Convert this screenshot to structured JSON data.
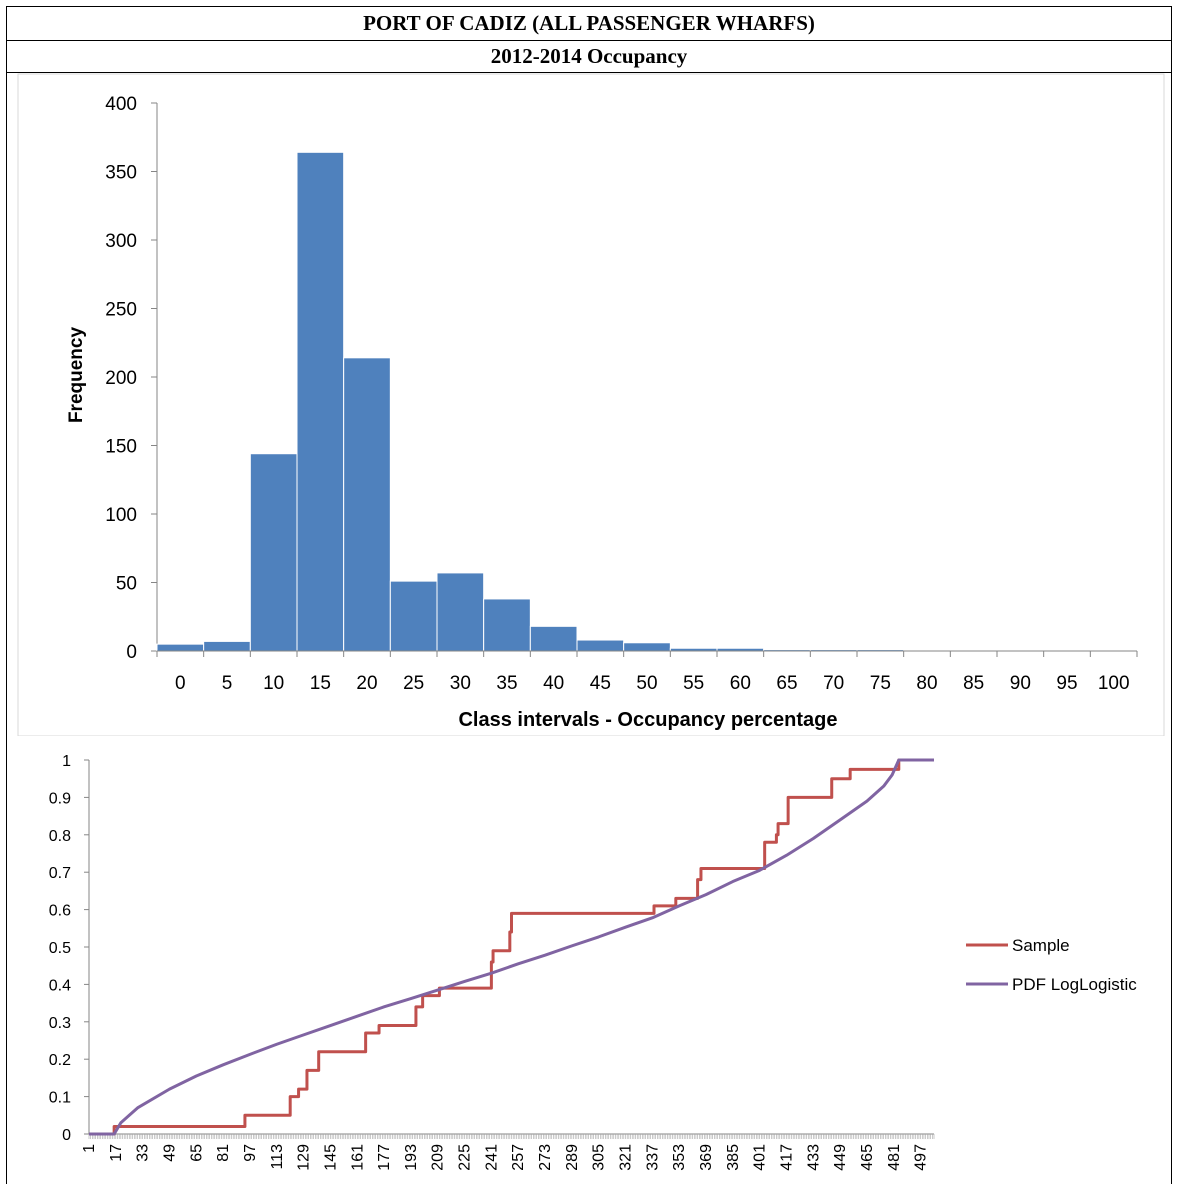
{
  "header": {
    "title": "PORT OF CADIZ (ALL PASSENGER WHARFS)",
    "subtitle": "2012-2014 Occupancy"
  },
  "chart_data": [
    {
      "type": "bar",
      "categories": [
        "0",
        "5",
        "10",
        "15",
        "20",
        "25",
        "30",
        "35",
        "40",
        "45",
        "50",
        "55",
        "60",
        "65",
        "70",
        "75",
        "80",
        "85",
        "90",
        "95",
        "100"
      ],
      "values": [
        5,
        7,
        144,
        364,
        214,
        51,
        57,
        38,
        18,
        8,
        6,
        2,
        2,
        1,
        1,
        1,
        0,
        0,
        0,
        0,
        0
      ],
      "xlabel": "Class intervals - Occupancy percentage",
      "ylabel": "Frequency",
      "ylim": [
        0,
        400
      ],
      "yticks": [
        0,
        50,
        100,
        150,
        200,
        250,
        300,
        350,
        400
      ],
      "color": "#4f81bd",
      "grid": false
    },
    {
      "type": "line",
      "xlim": [
        1,
        505
      ],
      "xticks": [
        1,
        17,
        33,
        49,
        65,
        81,
        97,
        113,
        129,
        145,
        161,
        177,
        193,
        209,
        225,
        241,
        257,
        273,
        289,
        305,
        321,
        337,
        353,
        369,
        385,
        401,
        417,
        433,
        449,
        465,
        481,
        497
      ],
      "ylim": [
        0,
        1
      ],
      "yticks": [
        "0",
        "0.1",
        "0.2",
        "0.3",
        "0.4",
        "0.5",
        "0.6",
        "0.7",
        "0.8",
        "0.9",
        "1"
      ],
      "legend_position": "right",
      "grid": false,
      "series": [
        {
          "name": "Sample",
          "color": "#c0504d",
          "step": true,
          "points": [
            [
              1,
              0
            ],
            [
              15,
              0
            ],
            [
              16,
              0.02
            ],
            [
              93,
              0.02
            ],
            [
              94,
              0.05
            ],
            [
              120,
              0.05
            ],
            [
              121,
              0.1
            ],
            [
              125,
              0.1
            ],
            [
              126,
              0.12
            ],
            [
              130,
              0.12
            ],
            [
              131,
              0.17
            ],
            [
              137,
              0.17
            ],
            [
              138,
              0.22
            ],
            [
              165,
              0.22
            ],
            [
              166,
              0.27
            ],
            [
              173,
              0.27
            ],
            [
              174,
              0.29
            ],
            [
              195,
              0.29
            ],
            [
              196,
              0.34
            ],
            [
              199,
              0.34
            ],
            [
              200,
              0.37
            ],
            [
              209,
              0.37
            ],
            [
              210,
              0.39
            ],
            [
              240,
              0.39
            ],
            [
              241,
              0.46
            ],
            [
              242,
              0.49
            ],
            [
              250,
              0.49
            ],
            [
              252,
              0.54
            ],
            [
              253,
              0.59
            ],
            [
              337,
              0.59
            ],
            [
              338,
              0.61
            ],
            [
              350,
              0.61
            ],
            [
              351,
              0.63
            ],
            [
              363,
              0.63
            ],
            [
              364,
              0.68
            ],
            [
              366,
              0.71
            ],
            [
              403,
              0.71
            ],
            [
              404,
              0.78
            ],
            [
              410,
              0.78
            ],
            [
              411,
              0.8
            ],
            [
              412,
              0.83
            ],
            [
              417,
              0.83
            ],
            [
              418,
              0.9
            ],
            [
              443,
              0.9
            ],
            [
              444,
              0.95
            ],
            [
              454,
              0.95
            ],
            [
              455,
              0.975
            ],
            [
              481,
              0.975
            ],
            [
              484,
              1
            ],
            [
              505,
              1
            ]
          ]
        },
        {
          "name": "PDF LogLogistic",
          "color": "#8064a2",
          "step": false,
          "points": [
            [
              1,
              0
            ],
            [
              16,
              0
            ],
            [
              20,
              0.03
            ],
            [
              30,
              0.07
            ],
            [
              49,
              0.12
            ],
            [
              65,
              0.155
            ],
            [
              81,
              0.185
            ],
            [
              97,
              0.213
            ],
            [
              113,
              0.24
            ],
            [
              129,
              0.265
            ],
            [
              145,
              0.29
            ],
            [
              161,
              0.315
            ],
            [
              177,
              0.34
            ],
            [
              193,
              0.362
            ],
            [
              209,
              0.385
            ],
            [
              225,
              0.408
            ],
            [
              241,
              0.43
            ],
            [
              257,
              0.455
            ],
            [
              273,
              0.478
            ],
            [
              289,
              0.503
            ],
            [
              305,
              0.527
            ],
            [
              321,
              0.553
            ],
            [
              337,
              0.578
            ],
            [
              353,
              0.61
            ],
            [
              369,
              0.64
            ],
            [
              385,
              0.675
            ],
            [
              401,
              0.705
            ],
            [
              417,
              0.745
            ],
            [
              433,
              0.79
            ],
            [
              449,
              0.84
            ],
            [
              465,
              0.89
            ],
            [
              475,
              0.93
            ],
            [
              480,
              0.96
            ],
            [
              484,
              1
            ],
            [
              505,
              1
            ]
          ]
        }
      ]
    }
  ]
}
